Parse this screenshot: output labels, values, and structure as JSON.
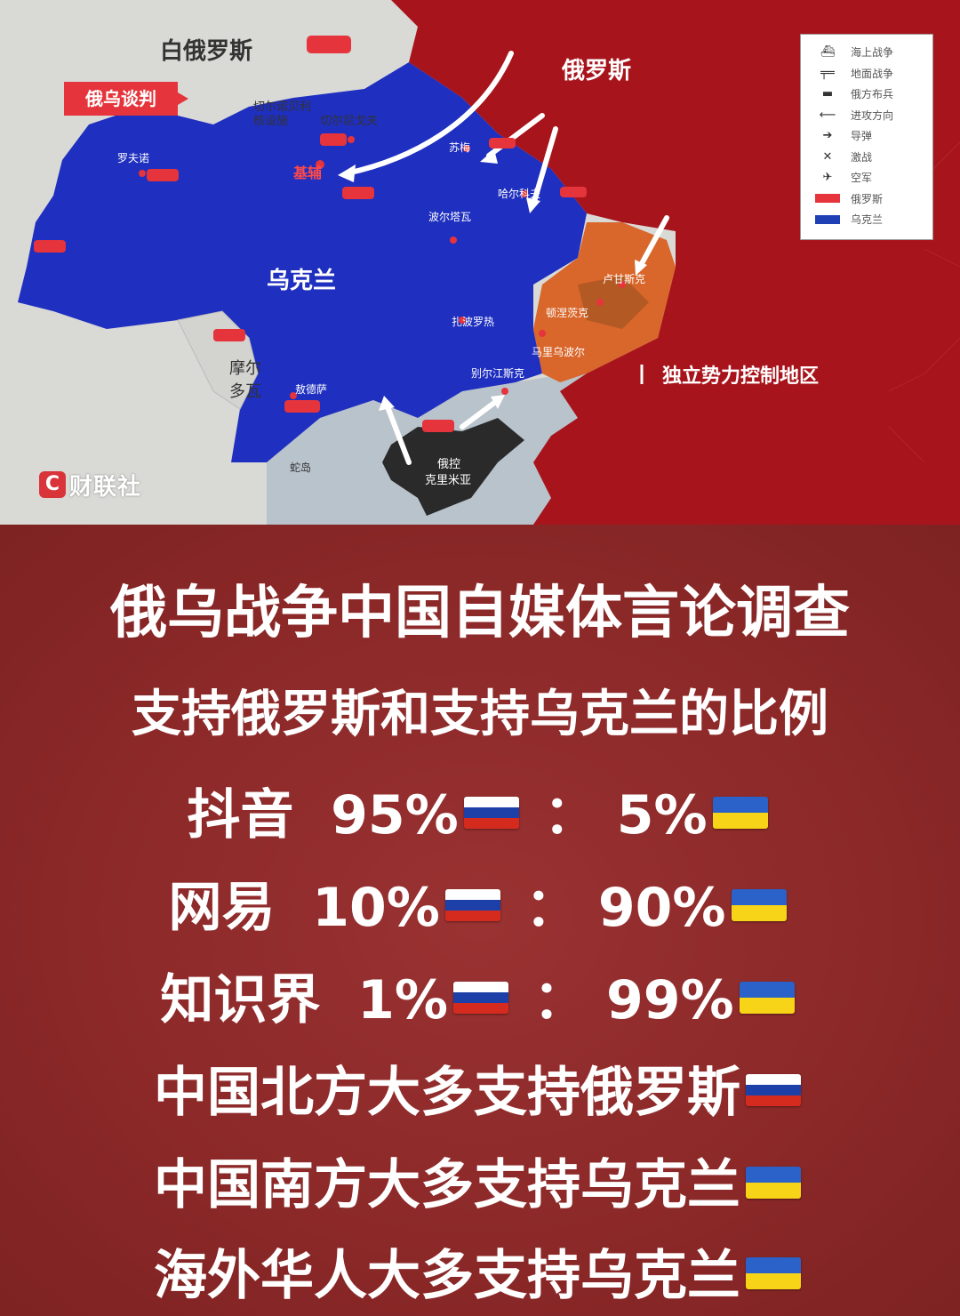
{
  "map": {
    "labels": {
      "belarus": "白俄罗斯",
      "russia": "俄罗斯",
      "ukraine": "乌克兰",
      "moldova_1": "摩尔",
      "moldova_2": "多瓦",
      "chernobyl_1": "切尔诺贝利",
      "chernobyl_2": "核设施",
      "chernihiv": "切尔尼戈夫",
      "kyiv": "基辅",
      "rivne": "罗夫诺",
      "sumy": "苏梅",
      "kharkiv": "哈尔科夫",
      "poltava": "波尔塔瓦",
      "luhansk": "卢甘斯克",
      "donetsk": "顿涅茨克",
      "mariupol": "马里乌波尔",
      "zaporizhzhia": "扎波罗热",
      "berdyansk": "别尔江斯克",
      "odesa": "敖德萨",
      "snake_island": "蛇岛",
      "crimea_1": "俄控",
      "crimea_2": "克里米亚",
      "separatists": "独立势力控制地区"
    },
    "talks_badge": "俄乌谈判",
    "legend": [
      {
        "icon": "ship-icon",
        "symbol": "⛴",
        "label": "海上战争"
      },
      {
        "icon": "gun-icon",
        "symbol": "╤═",
        "label": "地面战争"
      },
      {
        "icon": "tank-icon",
        "symbol": "▬",
        "label": "俄方布兵"
      },
      {
        "icon": "arrow-left-icon",
        "symbol": "⟵",
        "label": "进攻方向"
      },
      {
        "icon": "missile-icon",
        "symbol": "➔",
        "label": "导弹"
      },
      {
        "icon": "swords-icon",
        "symbol": "✕",
        "label": "激战"
      },
      {
        "icon": "jet-icon",
        "symbol": "✈",
        "label": "空军"
      },
      {
        "icon": "swatch-russia",
        "color": "#e5343b",
        "label": "俄罗斯"
      },
      {
        "icon": "swatch-ukraine",
        "color": "#1f3fb5",
        "label": "乌克兰"
      }
    ],
    "logo": {
      "mark": "C",
      "text": "财联社"
    },
    "colors": {
      "russia": "#a8141b",
      "ukraine": "#1f2fbf",
      "separatist": "#d9662a",
      "crimea": "#2a2a2a",
      "sea": "#b9c3cb",
      "land": "#d9d9d6"
    }
  },
  "panel": {
    "title": "俄乌战争中国自媒体言论调查",
    "subtitle": "支持俄罗斯和支持乌克兰的比例",
    "stats": [
      {
        "platform": "抖音",
        "russia_pct": "95%",
        "ukraine_pct": "5%"
      },
      {
        "platform": "网易",
        "russia_pct": "10%",
        "ukraine_pct": "90%"
      },
      {
        "platform": "知识界",
        "russia_pct": "1%",
        "ukraine_pct": "99%"
      }
    ],
    "separator": "：",
    "statements": [
      {
        "text": "中国北方大多支持俄罗斯",
        "flag": "ru"
      },
      {
        "text": "中国南方大多支持乌克兰",
        "flag": "ua"
      },
      {
        "text": "海外华人大多支持乌克兰",
        "flag": "ua"
      }
    ]
  }
}
